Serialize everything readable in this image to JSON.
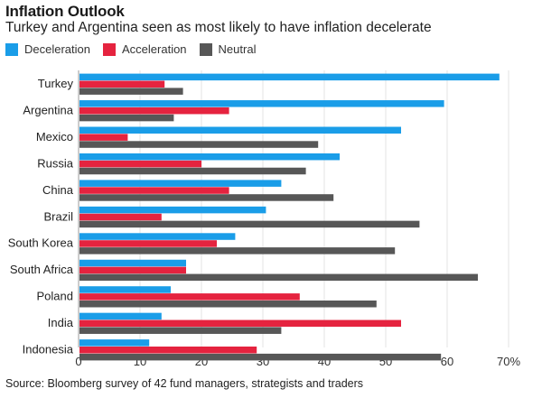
{
  "chart_data": {
    "type": "bar",
    "orientation": "horizontal",
    "title": "Inflation Outlook",
    "subtitle": "Turkey and Argentina seen as most likely to have inflation decelerate",
    "categories": [
      "Turkey",
      "Argentina",
      "Mexico",
      "Russia",
      "China",
      "Brazil",
      "South Korea",
      "South Africa",
      "Poland",
      "India",
      "Indonesia"
    ],
    "series": [
      {
        "name": "Deceleration",
        "color": "#1a9de8",
        "values": [
          68.5,
          59.5,
          52.5,
          42.5,
          33,
          30.5,
          25.5,
          17.5,
          15,
          13.5,
          11.5
        ]
      },
      {
        "name": "Acceleration",
        "color": "#e5233f",
        "values": [
          14,
          24.5,
          8,
          20,
          24.5,
          13.5,
          22.5,
          17.5,
          36,
          52.5,
          29
        ]
      },
      {
        "name": "Neutral",
        "color": "#575757",
        "values": [
          17,
          15.5,
          39,
          37,
          41.5,
          55.5,
          51.5,
          65,
          48.5,
          33,
          59
        ]
      }
    ],
    "xlim": [
      0,
      70
    ],
    "x_ticks": [
      "0",
      "10",
      "20",
      "30",
      "40",
      "50",
      "60",
      "70%"
    ],
    "grid": true,
    "legend_position": "top-left",
    "source": "Source: Bloomberg survey of 42 fund managers, strategists and traders"
  }
}
